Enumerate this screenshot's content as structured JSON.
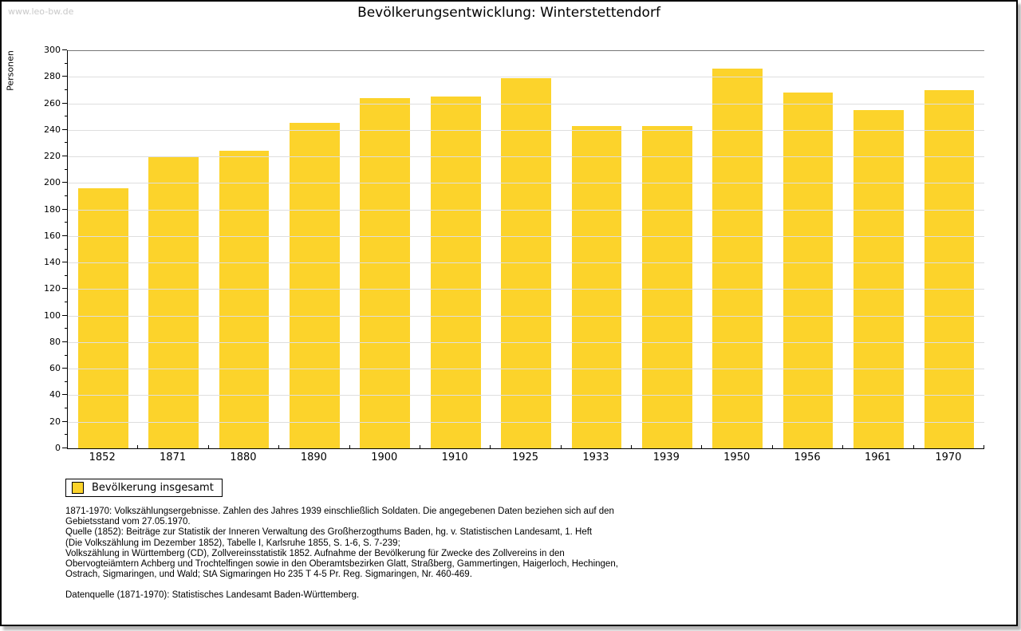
{
  "watermark": "www.leo-bw.de",
  "header": {
    "title": "Bevölkerungsentwicklung: Winterstettendorf"
  },
  "chart_data": {
    "type": "bar",
    "title": "Bevölkerungsentwicklung: Winterstettendorf",
    "xlabel": "",
    "ylabel": "Personen",
    "categories": [
      "1852",
      "1871",
      "1880",
      "1890",
      "1900",
      "1910",
      "1925",
      "1933",
      "1939",
      "1950",
      "1956",
      "1961",
      "1970"
    ],
    "values": [
      196,
      220,
      224,
      245,
      264,
      265,
      279,
      243,
      243,
      286,
      268,
      255,
      270
    ],
    "series_name": "Bevölkerung insgesamt",
    "ylim": [
      0,
      300
    ],
    "ytick_step": 20,
    "ytick_minor_step": 10,
    "grid": "horizontal",
    "legend_position": "bottom-left"
  },
  "legend": {
    "items": [
      {
        "label": "Bevölkerung insgesamt",
        "color": "#FCD32B"
      }
    ]
  },
  "footnotes": {
    "lines": [
      "1871-1970: Volkszählungsergebnisse. Zahlen des Jahres 1939 einschließlich Soldaten. Die angegebenen Daten beziehen sich auf den",
      "Gebietsstand vom 27.05.1970.",
      "Quelle (1852): Beiträge zur Statistik der Inneren Verwaltung des Großherzogthums Baden, hg. v. Statistischen Landesamt, 1. Heft",
      "(Die Volkszählung im Dezember 1852), Tabelle I, Karlsruhe 1855, S. 1-6, S. 7-239;",
      "Volkszählung in Württemberg (CD), Zollvereinsstatistik 1852. Aufnahme der Bevölkerung für Zwecke des Zollvereins in den",
      "Obervogteiämtern Achberg und Trochtelfingen sowie in den Oberamtsbezirken Glatt, Straßberg, Gammertingen, Haigerloch, Hechingen,",
      "Ostrach, Sigmaringen, und Wald; StA Sigmaringen Ho 235 T 4-5 Pr. Reg. Sigmaringen, Nr. 460-469."
    ],
    "datasource": "Datenquelle (1871-1970): Statistisches Landesamt Baden-Württemberg."
  },
  "colors": {
    "bar": "#FCD32B",
    "grid": "#DEDEDE",
    "grid_top": "#777777",
    "axis": "#000000",
    "watermark": "#C9C9C9"
  }
}
